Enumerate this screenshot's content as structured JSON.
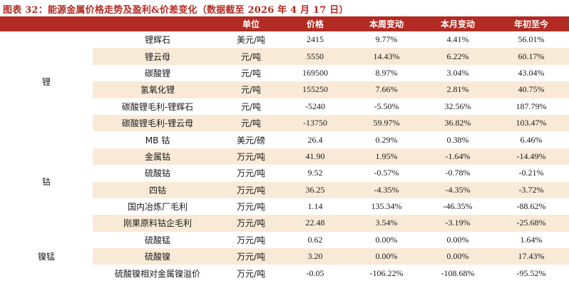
{
  "title": "图表 32：能源金属价格走势及盈利&价差变化（数据截至 2026 年 4 月 17 日）",
  "header": {
    "category": "",
    "name": "",
    "unit": "单位",
    "price": "价格",
    "week": "本周变动",
    "month": "本月变动",
    "ytd": "年初至今"
  },
  "groups": [
    {
      "category": "锂",
      "rows": [
        {
          "name": "锂辉石",
          "unit": "美元/吨",
          "price": "2415",
          "week": "9.77%",
          "month": "4.41%",
          "ytd": "56.01%"
        },
        {
          "name": "锂云母",
          "unit": "元/吨",
          "price": "5550",
          "week": "14.43%",
          "month": "6.22%",
          "ytd": "60.17%"
        },
        {
          "name": "碳酸锂",
          "unit": "元/吨",
          "price": "169500",
          "week": "8.97%",
          "month": "3.04%",
          "ytd": "43.04%"
        },
        {
          "name": "氢氧化锂",
          "unit": "元/吨",
          "price": "155250",
          "week": "7.66%",
          "month": "2.81%",
          "ytd": "40.75%"
        },
        {
          "name": "碳酸锂毛利-锂辉石",
          "unit": "元/吨",
          "price": "-5240",
          "week": "-5.50%",
          "month": "32.56%",
          "ytd": "187.79%"
        },
        {
          "name": "碳酸锂毛利-锂云母",
          "unit": "元/吨",
          "price": "-13750",
          "week": "59.97%",
          "month": "36.82%",
          "ytd": "103.47%"
        }
      ]
    },
    {
      "category": "钴",
      "rows": [
        {
          "name": "MB 钴",
          "unit": "美元/磅",
          "price": "26.4",
          "week": "0.29%",
          "month": "0.38%",
          "ytd": "6.46%"
        },
        {
          "name": "金属钴",
          "unit": "万元/吨",
          "price": "41.90",
          "week": "1.95%",
          "month": "-1.64%",
          "ytd": "-14.49%"
        },
        {
          "name": "硫酸钴",
          "unit": "万元/吨",
          "price": "9.52",
          "week": "-0.57%",
          "month": "-0.78%",
          "ytd": "-0.21%"
        },
        {
          "name": "四钴",
          "unit": "万元/吨",
          "price": "36.25",
          "week": "-4.35%",
          "month": "-4.35%",
          "ytd": "-3.72%"
        },
        {
          "name": "国内冶炼厂毛利",
          "unit": "万元/吨",
          "price": "1.14",
          "week": "135.34%",
          "month": "-46.35%",
          "ytd": "-88.62%"
        },
        {
          "name": "刚果原料钴企毛利",
          "unit": "万元/吨",
          "price": "22.48",
          "week": "3.54%",
          "month": "-3.19%",
          "ytd": "-25.68%"
        }
      ]
    },
    {
      "category": "镍锰",
      "rows": [
        {
          "name": "硫酸锰",
          "unit": "万元/吨",
          "price": "0.62",
          "week": "0.00%",
          "month": "0.00%",
          "ytd": "1.64%"
        },
        {
          "name": "硫酸镍",
          "unit": "万元/吨",
          "price": "3.20",
          "week": "0.00%",
          "month": "0.00%",
          "ytd": "17.43%"
        },
        {
          "name": "硫酸镍相对金属镍溢价",
          "unit": "万元/吨",
          "price": "-0.05",
          "week": "-106.22%",
          "month": "-108.68%",
          "ytd": "-95.52%"
        }
      ]
    }
  ]
}
